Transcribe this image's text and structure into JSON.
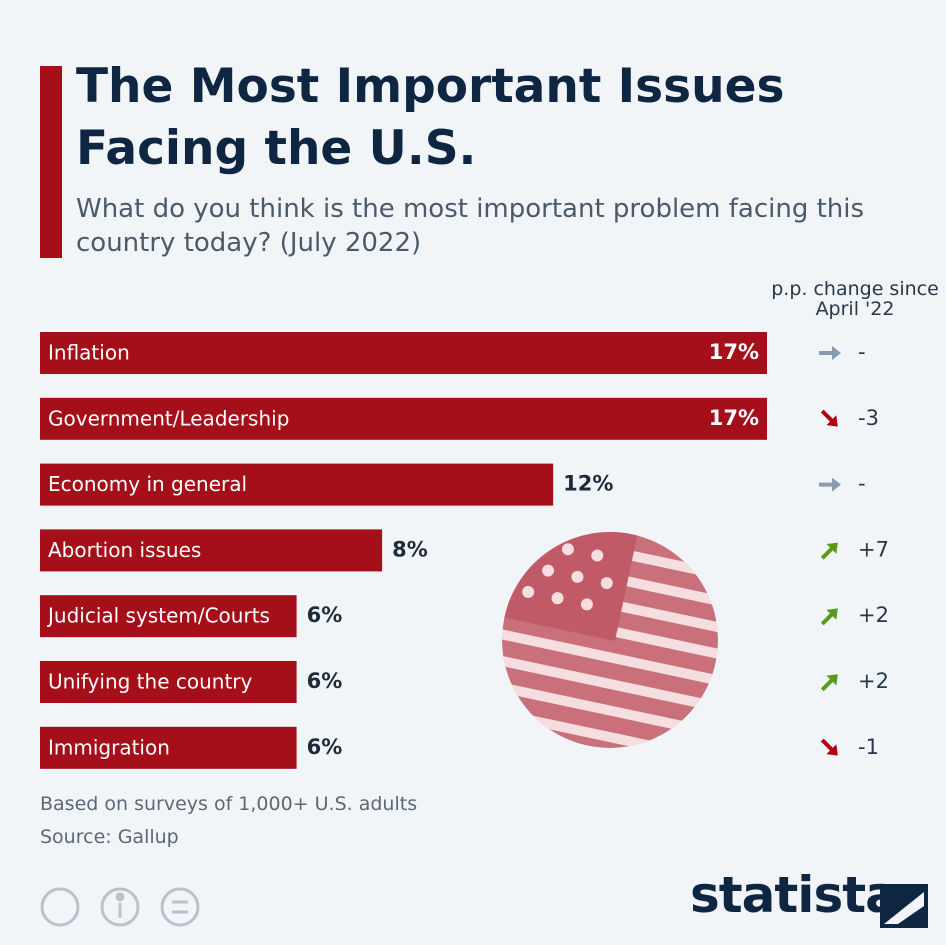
{
  "chart_data": {
    "type": "bar",
    "title": "The Most Important Issues Facing the U.S.",
    "subtitle": "What do you think is the most important problem facing this country today? (July 2022)",
    "categories": [
      "Inflation",
      "Government/Leadership",
      "Economy in general",
      "Abortion issues",
      "Judicial system/Courts",
      "Unifying the country",
      "Immigration"
    ],
    "values": [
      17,
      17,
      12,
      8,
      6,
      6,
      6
    ],
    "value_labels": [
      "17%",
      "17%",
      "12%",
      "8%",
      "6%",
      "6%",
      "6%"
    ],
    "color": "#a50f1a",
    "change_label": "p.p. change since April '22",
    "changes": [
      "-",
      "-3",
      "-",
      "+7",
      "+2",
      "+2",
      "-1"
    ],
    "note": "Based on surveys of 1,000+ U.S. adults",
    "source": "Source: Gallup",
    "brand": "statista"
  }
}
